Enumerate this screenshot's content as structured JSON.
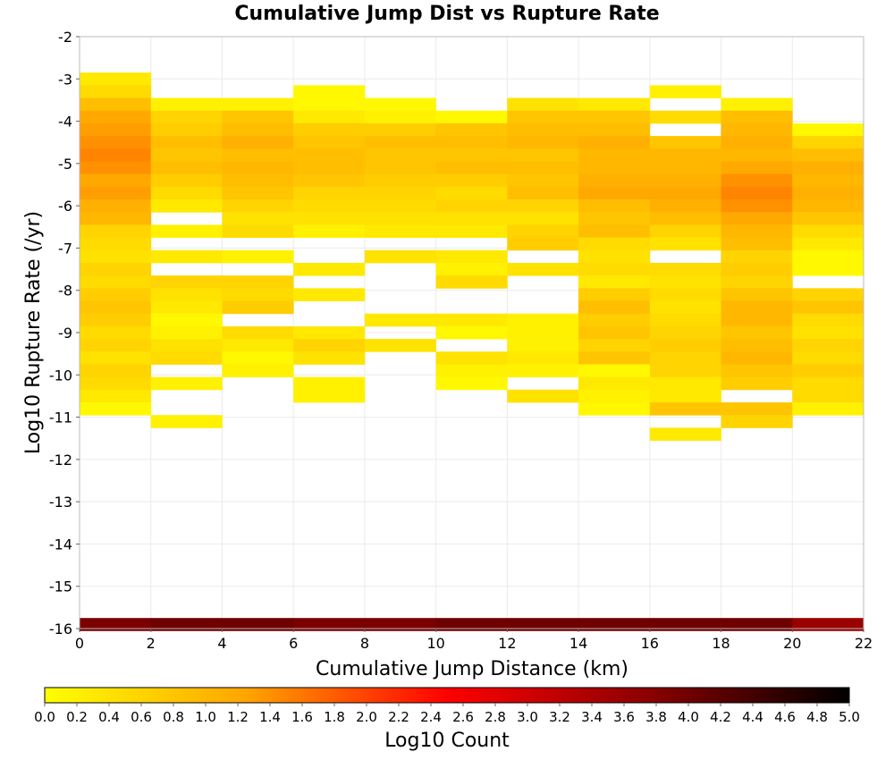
{
  "chart_data": {
    "type": "heatmap",
    "title": "Cumulative Jump Dist vs Rupture Rate",
    "xlabel": "Cumulative Jump Distance (km)",
    "ylabel": "Log10 Rupture Rate (/yr)",
    "xlim": [
      0,
      22
    ],
    "ylim": [
      -16,
      -2
    ],
    "x_ticks": [
      "0",
      "2",
      "4",
      "6",
      "8",
      "10",
      "12",
      "14",
      "16",
      "18",
      "20",
      "22"
    ],
    "y_ticks": [
      "-2",
      "-3",
      "-4",
      "-5",
      "-6",
      "-7",
      "-8",
      "-9",
      "-10",
      "-11",
      "-12",
      "-13",
      "-14",
      "-15",
      "-16"
    ],
    "x_bin_width": 2,
    "y_bin_height": 0.3,
    "grid": true,
    "colorbar": {
      "label": "Log10 Count",
      "min": 0,
      "max": 5,
      "ticks": [
        "0.0",
        "0.2",
        "0.4",
        "0.6",
        "0.8",
        "1.0",
        "1.2",
        "1.4",
        "1.6",
        "1.8",
        "2.0",
        "2.2",
        "2.4",
        "2.6",
        "2.8",
        "3.0",
        "3.2",
        "3.4",
        "3.6",
        "3.8",
        "4.0",
        "4.2",
        "4.4",
        "4.6",
        "4.8",
        "5.0"
      ],
      "colors": [
        "#ffff00",
        "#ffa500",
        "#ff0000",
        "#8b0000",
        "#000000"
      ]
    },
    "columns": [
      {
        "x": 0,
        "cells": [
          {
            "y": -3.0,
            "v": 0.3
          },
          {
            "y": -3.3,
            "v": 0.5
          },
          {
            "y": -3.6,
            "v": 0.9
          },
          {
            "y": -3.9,
            "v": 1.2
          },
          {
            "y": -4.2,
            "v": 1.3
          },
          {
            "y": -4.5,
            "v": 1.4
          },
          {
            "y": -4.8,
            "v": 1.5
          },
          {
            "y": -5.1,
            "v": 1.4
          },
          {
            "y": -5.4,
            "v": 1.2
          },
          {
            "y": -5.7,
            "v": 1.3
          },
          {
            "y": -6.0,
            "v": 1.1
          },
          {
            "y": -6.3,
            "v": 1.0
          },
          {
            "y": -6.6,
            "v": 0.6
          },
          {
            "y": -6.9,
            "v": 0.5
          },
          {
            "y": -7.2,
            "v": 0.4
          },
          {
            "y": -7.5,
            "v": 0.6
          },
          {
            "y": -7.8,
            "v": 0.5
          },
          {
            "y": -8.1,
            "v": 0.7
          },
          {
            "y": -8.4,
            "v": 0.8
          },
          {
            "y": -8.7,
            "v": 0.7
          },
          {
            "y": -9.0,
            "v": 0.5
          },
          {
            "y": -9.3,
            "v": 0.6
          },
          {
            "y": -9.6,
            "v": 0.4
          },
          {
            "y": -9.9,
            "v": 0.6
          },
          {
            "y": -10.2,
            "v": 0.5
          },
          {
            "y": -10.5,
            "v": 0.3
          },
          {
            "y": -10.8,
            "v": 0.1
          },
          {
            "y": -15.9,
            "v": 3.9
          }
        ]
      },
      {
        "x": 2,
        "cells": [
          {
            "y": -3.6,
            "v": 0.2
          },
          {
            "y": -3.9,
            "v": 0.6
          },
          {
            "y": -4.2,
            "v": 0.7
          },
          {
            "y": -4.5,
            "v": 0.9
          },
          {
            "y": -4.8,
            "v": 0.8
          },
          {
            "y": -5.1,
            "v": 0.9
          },
          {
            "y": -5.4,
            "v": 0.7
          },
          {
            "y": -5.7,
            "v": 0.5
          },
          {
            "y": -6.0,
            "v": 0.3
          },
          {
            "y": -6.6,
            "v": 0.2
          },
          {
            "y": -7.2,
            "v": 0.3
          },
          {
            "y": -7.8,
            "v": 0.6
          },
          {
            "y": -8.1,
            "v": 0.4
          },
          {
            "y": -8.4,
            "v": 0.3
          },
          {
            "y": -8.7,
            "v": 0.1
          },
          {
            "y": -9.0,
            "v": 0.2
          },
          {
            "y": -9.3,
            "v": 0.4
          },
          {
            "y": -9.6,
            "v": 0.5
          },
          {
            "y": -10.2,
            "v": 0.2
          },
          {
            "y": -11.1,
            "v": 0.2
          },
          {
            "y": -15.9,
            "v": 4.0
          }
        ]
      },
      {
        "x": 4,
        "cells": [
          {
            "y": -3.6,
            "v": 0.2
          },
          {
            "y": -3.9,
            "v": 0.8
          },
          {
            "y": -4.2,
            "v": 0.9
          },
          {
            "y": -4.5,
            "v": 1.1
          },
          {
            "y": -4.8,
            "v": 0.9
          },
          {
            "y": -5.1,
            "v": 1.0
          },
          {
            "y": -5.4,
            "v": 0.9
          },
          {
            "y": -5.7,
            "v": 0.8
          },
          {
            "y": -6.0,
            "v": 0.6
          },
          {
            "y": -6.3,
            "v": 0.4
          },
          {
            "y": -6.6,
            "v": 0.5
          },
          {
            "y": -7.2,
            "v": 0.2
          },
          {
            "y": -7.8,
            "v": 0.6
          },
          {
            "y": -8.1,
            "v": 0.5
          },
          {
            "y": -8.4,
            "v": 0.7
          },
          {
            "y": -9.0,
            "v": 0.5
          },
          {
            "y": -9.3,
            "v": 0.3
          },
          {
            "y": -9.6,
            "v": 0.1
          },
          {
            "y": -9.9,
            "v": 0.2
          },
          {
            "y": -15.9,
            "v": 4.0
          }
        ]
      },
      {
        "x": 6,
        "cells": [
          {
            "y": -3.3,
            "v": 0.1
          },
          {
            "y": -3.6,
            "v": 0.1
          },
          {
            "y": -3.9,
            "v": 0.3
          },
          {
            "y": -4.2,
            "v": 0.7
          },
          {
            "y": -4.5,
            "v": 0.8
          },
          {
            "y": -4.8,
            "v": 0.9
          },
          {
            "y": -5.1,
            "v": 0.9
          },
          {
            "y": -5.4,
            "v": 0.8
          },
          {
            "y": -5.7,
            "v": 0.6
          },
          {
            "y": -6.0,
            "v": 0.5
          },
          {
            "y": -6.3,
            "v": 0.4
          },
          {
            "y": -6.6,
            "v": 0.2
          },
          {
            "y": -7.5,
            "v": 0.3
          },
          {
            "y": -8.1,
            "v": 0.3
          },
          {
            "y": -9.0,
            "v": 0.3
          },
          {
            "y": -9.3,
            "v": 0.6
          },
          {
            "y": -9.6,
            "v": 0.4
          },
          {
            "y": -10.2,
            "v": 0.2
          },
          {
            "y": -10.5,
            "v": 0.2
          },
          {
            "y": -15.9,
            "v": 3.9
          }
        ]
      },
      {
        "x": 8,
        "cells": [
          {
            "y": -3.6,
            "v": 0.1
          },
          {
            "y": -3.9,
            "v": 0.2
          },
          {
            "y": -4.2,
            "v": 0.7
          },
          {
            "y": -4.5,
            "v": 0.9
          },
          {
            "y": -4.8,
            "v": 0.8
          },
          {
            "y": -5.1,
            "v": 0.8
          },
          {
            "y": -5.4,
            "v": 0.7
          },
          {
            "y": -5.7,
            "v": 0.6
          },
          {
            "y": -6.0,
            "v": 0.5
          },
          {
            "y": -6.3,
            "v": 0.4
          },
          {
            "y": -6.6,
            "v": 0.3
          },
          {
            "y": -7.2,
            "v": 0.4
          },
          {
            "y": -8.7,
            "v": 0.3
          },
          {
            "y": -9.3,
            "v": 0.4
          },
          {
            "y": -15.9,
            "v": 3.9
          }
        ]
      },
      {
        "x": 10,
        "cells": [
          {
            "y": -3.9,
            "v": 0.1
          },
          {
            "y": -4.2,
            "v": 0.8
          },
          {
            "y": -4.5,
            "v": 0.9
          },
          {
            "y": -4.8,
            "v": 0.8
          },
          {
            "y": -5.1,
            "v": 0.9
          },
          {
            "y": -5.4,
            "v": 0.7
          },
          {
            "y": -5.7,
            "v": 0.5
          },
          {
            "y": -6.0,
            "v": 0.6
          },
          {
            "y": -6.3,
            "v": 0.4
          },
          {
            "y": -6.6,
            "v": 0.3
          },
          {
            "y": -7.2,
            "v": 0.3
          },
          {
            "y": -7.5,
            "v": 0.2
          },
          {
            "y": -7.8,
            "v": 0.5
          },
          {
            "y": -8.7,
            "v": 0.3
          },
          {
            "y": -9.0,
            "v": 0.1
          },
          {
            "y": -9.6,
            "v": 0.4
          },
          {
            "y": -9.9,
            "v": 0.2
          },
          {
            "y": -10.2,
            "v": 0.1
          },
          {
            "y": -15.9,
            "v": 4.0
          }
        ]
      },
      {
        "x": 12,
        "cells": [
          {
            "y": -3.6,
            "v": 0.4
          },
          {
            "y": -3.9,
            "v": 0.8
          },
          {
            "y": -4.2,
            "v": 0.9
          },
          {
            "y": -4.5,
            "v": 1.0
          },
          {
            "y": -4.8,
            "v": 0.8
          },
          {
            "y": -5.1,
            "v": 0.9
          },
          {
            "y": -5.4,
            "v": 0.8
          },
          {
            "y": -5.7,
            "v": 0.9
          },
          {
            "y": -6.0,
            "v": 0.6
          },
          {
            "y": -6.3,
            "v": 0.4
          },
          {
            "y": -6.6,
            "v": 0.6
          },
          {
            "y": -6.9,
            "v": 0.7
          },
          {
            "y": -7.5,
            "v": 0.4
          },
          {
            "y": -8.7,
            "v": 0.2
          },
          {
            "y": -9.0,
            "v": 0.2
          },
          {
            "y": -9.3,
            "v": 0.2
          },
          {
            "y": -9.6,
            "v": 0.3
          },
          {
            "y": -9.9,
            "v": 0.2
          },
          {
            "y": -10.5,
            "v": 0.4
          },
          {
            "y": -15.9,
            "v": 4.0
          }
        ]
      },
      {
        "x": 14,
        "cells": [
          {
            "y": -3.6,
            "v": 0.3
          },
          {
            "y": -3.9,
            "v": 0.8
          },
          {
            "y": -4.2,
            "v": 0.9
          },
          {
            "y": -4.5,
            "v": 1.1
          },
          {
            "y": -4.8,
            "v": 1.0
          },
          {
            "y": -5.1,
            "v": 1.0
          },
          {
            "y": -5.4,
            "v": 1.1
          },
          {
            "y": -5.7,
            "v": 1.2
          },
          {
            "y": -6.0,
            "v": 0.9
          },
          {
            "y": -6.3,
            "v": 0.8
          },
          {
            "y": -6.6,
            "v": 0.9
          },
          {
            "y": -6.9,
            "v": 0.5
          },
          {
            "y": -7.2,
            "v": 0.4
          },
          {
            "y": -7.5,
            "v": 0.5
          },
          {
            "y": -7.8,
            "v": 0.3
          },
          {
            "y": -8.1,
            "v": 0.7
          },
          {
            "y": -8.4,
            "v": 0.9
          },
          {
            "y": -8.7,
            "v": 0.7
          },
          {
            "y": -9.0,
            "v": 0.8
          },
          {
            "y": -9.3,
            "v": 0.6
          },
          {
            "y": -9.6,
            "v": 0.8
          },
          {
            "y": -9.9,
            "v": 0.1
          },
          {
            "y": -10.2,
            "v": 0.3
          },
          {
            "y": -10.5,
            "v": 0.2
          },
          {
            "y": -10.8,
            "v": 0.1
          },
          {
            "y": -15.9,
            "v": 4.0
          }
        ]
      },
      {
        "x": 16,
        "cells": [
          {
            "y": -3.3,
            "v": 0.2
          },
          {
            "y": -3.9,
            "v": 0.5
          },
          {
            "y": -4.5,
            "v": 0.8
          },
          {
            "y": -4.8,
            "v": 1.0
          },
          {
            "y": -5.1,
            "v": 1.0
          },
          {
            "y": -5.4,
            "v": 1.1
          },
          {
            "y": -5.7,
            "v": 1.2
          },
          {
            "y": -6.0,
            "v": 1.1
          },
          {
            "y": -6.3,
            "v": 0.9
          },
          {
            "y": -6.6,
            "v": 0.6
          },
          {
            "y": -6.9,
            "v": 0.4
          },
          {
            "y": -7.5,
            "v": 0.5
          },
          {
            "y": -7.8,
            "v": 0.4
          },
          {
            "y": -8.1,
            "v": 0.5
          },
          {
            "y": -8.4,
            "v": 0.4
          },
          {
            "y": -8.7,
            "v": 0.5
          },
          {
            "y": -9.0,
            "v": 0.6
          },
          {
            "y": -9.3,
            "v": 0.7
          },
          {
            "y": -9.6,
            "v": 0.6
          },
          {
            "y": -9.9,
            "v": 0.6
          },
          {
            "y": -10.2,
            "v": 0.3
          },
          {
            "y": -10.5,
            "v": 0.3
          },
          {
            "y": -10.8,
            "v": 0.8
          },
          {
            "y": -11.4,
            "v": 0.3
          },
          {
            "y": -15.9,
            "v": 4.0
          }
        ]
      },
      {
        "x": 18,
        "cells": [
          {
            "y": -3.6,
            "v": 0.2
          },
          {
            "y": -3.9,
            "v": 0.9
          },
          {
            "y": -4.2,
            "v": 1.0
          },
          {
            "y": -4.5,
            "v": 1.1
          },
          {
            "y": -4.8,
            "v": 1.0
          },
          {
            "y": -5.1,
            "v": 1.2
          },
          {
            "y": -5.4,
            "v": 1.4
          },
          {
            "y": -5.7,
            "v": 1.5
          },
          {
            "y": -6.0,
            "v": 1.4
          },
          {
            "y": -6.3,
            "v": 1.2
          },
          {
            "y": -6.6,
            "v": 1.0
          },
          {
            "y": -6.9,
            "v": 0.9
          },
          {
            "y": -7.2,
            "v": 0.6
          },
          {
            "y": -7.5,
            "v": 0.7
          },
          {
            "y": -7.8,
            "v": 0.6
          },
          {
            "y": -8.1,
            "v": 0.8
          },
          {
            "y": -8.4,
            "v": 1.0
          },
          {
            "y": -8.7,
            "v": 1.0
          },
          {
            "y": -9.0,
            "v": 0.8
          },
          {
            "y": -9.3,
            "v": 0.9
          },
          {
            "y": -9.6,
            "v": 1.0
          },
          {
            "y": -9.9,
            "v": 0.8
          },
          {
            "y": -10.2,
            "v": 0.7
          },
          {
            "y": -10.8,
            "v": 0.8
          },
          {
            "y": -11.1,
            "v": 0.6
          },
          {
            "y": -15.9,
            "v": 4.0
          }
        ]
      },
      {
        "x": 20,
        "cells": [
          {
            "y": -4.2,
            "v": 0.1
          },
          {
            "y": -4.5,
            "v": 0.6
          },
          {
            "y": -4.8,
            "v": 0.9
          },
          {
            "y": -5.1,
            "v": 1.1
          },
          {
            "y": -5.4,
            "v": 1.0
          },
          {
            "y": -5.7,
            "v": 1.1
          },
          {
            "y": -6.0,
            "v": 1.0
          },
          {
            "y": -6.3,
            "v": 0.8
          },
          {
            "y": -6.6,
            "v": 0.5
          },
          {
            "y": -6.9,
            "v": 0.3
          },
          {
            "y": -7.2,
            "v": 0.1
          },
          {
            "y": -7.5,
            "v": 0.1
          },
          {
            "y": -8.1,
            "v": 0.6
          },
          {
            "y": -8.4,
            "v": 0.8
          },
          {
            "y": -8.7,
            "v": 0.5
          },
          {
            "y": -9.0,
            "v": 0.4
          },
          {
            "y": -9.3,
            "v": 0.6
          },
          {
            "y": -9.6,
            "v": 0.5
          },
          {
            "y": -9.9,
            "v": 0.7
          },
          {
            "y": -10.2,
            "v": 0.5
          },
          {
            "y": -10.5,
            "v": 0.5
          },
          {
            "y": -10.8,
            "v": 0.2
          },
          {
            "y": -15.9,
            "v": 3.6
          }
        ]
      }
    ]
  }
}
